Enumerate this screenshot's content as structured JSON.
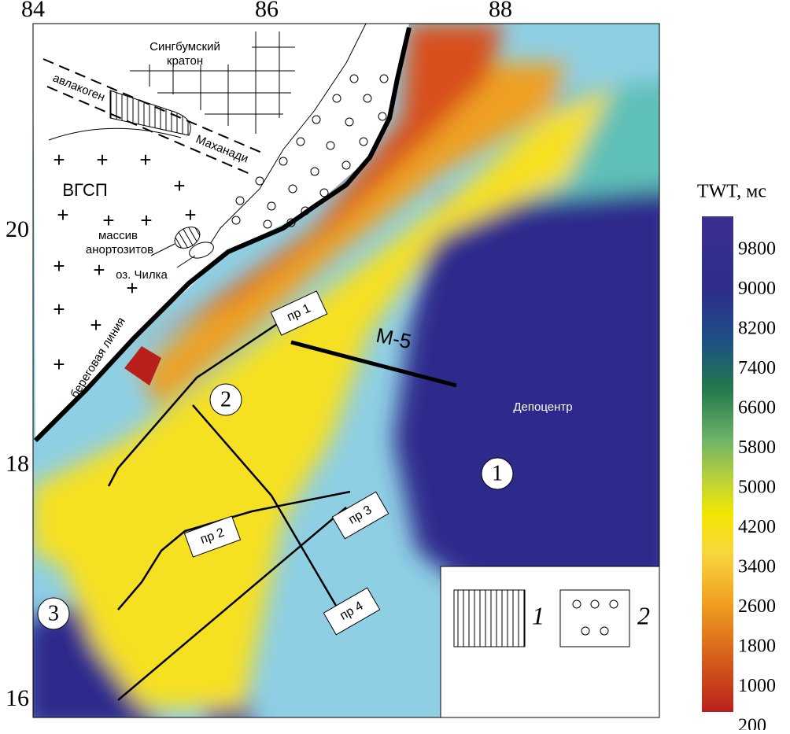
{
  "map": {
    "lon_ticks": [
      84,
      86,
      88
    ],
    "lat_ticks": [
      20,
      18,
      16
    ],
    "colorbar": {
      "title": "TWT, мс",
      "ticks": [
        9800,
        9000,
        8200,
        7400,
        6600,
        5800,
        5000,
        4200,
        3400,
        2600,
        1800,
        1000,
        200
      ]
    },
    "labels": {
      "craton": [
        "Сингбумский",
        "кратон"
      ],
      "aulacogen": "авлакоген",
      "mahanadi": "Маханади",
      "vgsp": "ВГСП",
      "massif": [
        "массив",
        "анортозитов"
      ],
      "lake": "оз. Чилка",
      "coastline": "береговая линия",
      "depocenter": "Депоцентр",
      "m5": "М-5"
    },
    "profiles": [
      "пр 1",
      "пр 2",
      "пр 3",
      "пр 4"
    ],
    "zones": [
      "1",
      "2",
      "3"
    ],
    "legend": [
      "1",
      "2"
    ]
  }
}
